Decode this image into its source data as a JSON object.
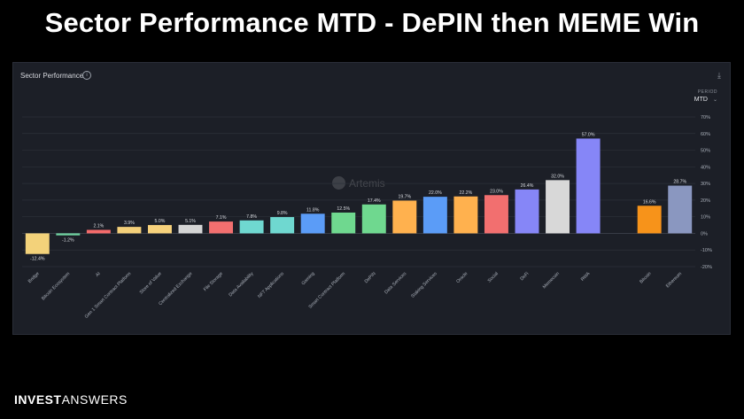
{
  "slide": {
    "title": "Sector Performance MTD - DePIN then MEME Win",
    "brand_bold": "INVEST",
    "brand_light": "ANSWERS"
  },
  "panel": {
    "title": "Sector Performance",
    "info_icon": "info-icon",
    "download_icon": "download-icon",
    "period_label": "PERIOD",
    "period_value": "MTD"
  },
  "watermark": "Artemis",
  "chart_data": {
    "type": "bar",
    "title": "Sector Performance",
    "xlabel": "",
    "ylabel": "",
    "ylim": [
      -20,
      70
    ],
    "yticks": [
      -20,
      -10,
      0,
      10,
      20,
      30,
      40,
      50,
      60,
      70
    ],
    "y_tick_format": "percent",
    "grid": true,
    "categories": [
      "Bridge",
      "Bitcoin Ecosystem",
      "AI",
      "Gen 1 Smart Contract Platform",
      "Store of Value",
      "Centralized Exchange",
      "File Storage",
      "Data Availability",
      "NFT Applications",
      "Gaming",
      "Smart Contract Platform",
      "DePIN",
      "Data Services",
      "Staking Services",
      "Oracle",
      "Social",
      "DeFi",
      "Memecoin",
      "RWA",
      "Bitcoin",
      "Ethereum"
    ],
    "values": [
      -12.4,
      -1.2,
      2.1,
      3.9,
      5.0,
      5.1,
      7.1,
      7.8,
      9.8,
      11.8,
      12.5,
      17.4,
      19.7,
      22.0,
      22.2,
      23.0,
      26.4,
      32.0,
      57.0,
      16.6,
      28.7
    ],
    "labels": [
      "-12.4%",
      "-1.2%",
      "2.1%",
      "3.9%",
      "5.0%",
      "5.1%",
      "7.1%",
      "7.8%",
      "9.8%",
      "11.8%",
      "12.5%",
      "17.4%",
      "19.7%",
      "22.0%",
      "22.2%",
      "23.0%",
      "26.4%",
      "32.0%",
      "57.0%",
      "16.6%",
      "28.7%"
    ],
    "colors": [
      "#f3d27a",
      "#6fd3a0",
      "#f46b6b",
      "#f4d07a",
      "#f7d27c",
      "#d4d4d4",
      "#f26f6f",
      "#6fd8d0",
      "#6fd8d0",
      "#5b9cf7",
      "#6fd88f",
      "#6fd88f",
      "#ffb14e",
      "#5b9cf7",
      "#ffb14e",
      "#f26f6f",
      "#8686f7",
      "#d8d8d8",
      "#8686f7",
      "#f7931a",
      "#8a97c0"
    ],
    "gap_before_index": 19
  }
}
